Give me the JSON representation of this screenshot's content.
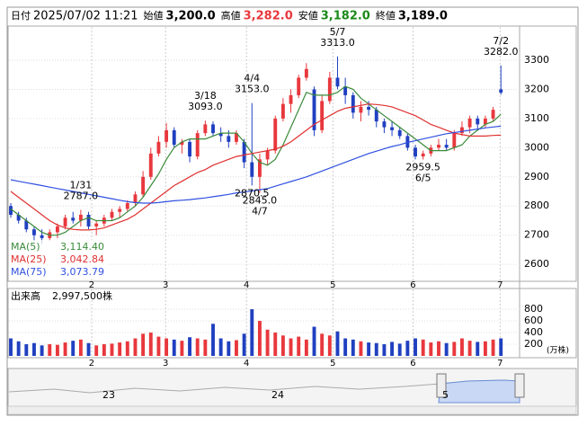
{
  "chart_data": {
    "type": "candlestick",
    "header": [
      {
        "label": "日付",
        "text": "2025/07/02 11:21",
        "color": "#000000"
      },
      {
        "label": "始値",
        "text": "3,200.0",
        "color": "#000000"
      },
      {
        "label": "高値",
        "text": "3,282.0",
        "color": "#e8383d"
      },
      {
        "label": "安値",
        "text": "3,182.0",
        "color": "#1a8a1a"
      },
      {
        "label": "終値",
        "text": "3,189.0",
        "color": "#000000"
      }
    ],
    "up_color": "#e8383d",
    "down_color": "#2040c0",
    "xlim": [
      -0.23,
      65.4
    ],
    "xticks": [
      {
        "value": 10.4,
        "label": "2"
      },
      {
        "value": 19.9,
        "label": "3"
      },
      {
        "value": 30.3,
        "label": "4"
      },
      {
        "value": 41.4,
        "label": "5"
      },
      {
        "value": 51.7,
        "label": "6"
      },
      {
        "value": 62.9,
        "label": "7"
      }
    ],
    "ylim": [
      2545,
      3414
    ],
    "yticks": [
      2600,
      2700,
      2800,
      2900,
      3000,
      3100,
      3200,
      3300
    ],
    "candles": [
      [
        2800,
        2810,
        2760,
        2770
      ],
      [
        2770,
        2780,
        2740,
        2750
      ],
      [
        2750,
        2760,
        2710,
        2720
      ],
      [
        2720,
        2730,
        2680,
        2700
      ],
      [
        2700,
        2720,
        2670,
        2690
      ],
      [
        2690,
        2720,
        2680,
        2710
      ],
      [
        2710,
        2740,
        2690,
        2730
      ],
      [
        2730,
        2770,
        2720,
        2760
      ],
      [
        2760,
        2780,
        2740,
        2750
      ],
      [
        2750,
        2787,
        2730,
        2770
      ],
      [
        2770,
        2780,
        2720,
        2730
      ],
      [
        2730,
        2750,
        2700,
        2740
      ],
      [
        2740,
        2770,
        2730,
        2760
      ],
      [
        2760,
        2790,
        2750,
        2780
      ],
      [
        2780,
        2800,
        2760,
        2790
      ],
      [
        2790,
        2820,
        2780,
        2810
      ],
      [
        2810,
        2850,
        2800,
        2840
      ],
      [
        2840,
        2920,
        2830,
        2900
      ],
      [
        2900,
        3000,
        2890,
        2980
      ],
      [
        2980,
        3040,
        2970,
        3020
      ],
      [
        3020,
        3085,
        3000,
        3060
      ],
      [
        3060,
        3070,
        3000,
        3010
      ],
      [
        3010,
        3030,
        2980,
        3020
      ],
      [
        3020,
        3030,
        2950,
        2970
      ],
      [
        2970,
        3060,
        2960,
        3050
      ],
      [
        3050,
        3093,
        3040,
        3080
      ],
      [
        3080,
        3090,
        3040,
        3050
      ],
      [
        3050,
        3070,
        3020,
        3040
      ],
      [
        3040,
        3060,
        3000,
        3020
      ],
      [
        3020,
        3060,
        3010,
        3050
      ],
      [
        3020,
        3030,
        2930,
        2950
      ],
      [
        2950,
        3153,
        2870.5,
        2900
      ],
      [
        2900,
        2980,
        2845,
        2960
      ],
      [
        2960,
        3000,
        2940,
        2990
      ],
      [
        2990,
        3110,
        2980,
        3100
      ],
      [
        3100,
        3170,
        3090,
        3150
      ],
      [
        3150,
        3200,
        3120,
        3180
      ],
      [
        3180,
        3250,
        3170,
        3240
      ],
      [
        3240,
        3290,
        3230,
        3270
      ],
      [
        3200,
        3210,
        3040,
        3060
      ],
      [
        3060,
        3180,
        3050,
        3160
      ],
      [
        3160,
        3260,
        3150,
        3240
      ],
      [
        3240,
        3313,
        3200,
        3210
      ],
      [
        3210,
        3240,
        3150,
        3180
      ],
      [
        3180,
        3190,
        3100,
        3120
      ],
      [
        3120,
        3160,
        3090,
        3140
      ],
      [
        3140,
        3160,
        3110,
        3130
      ],
      [
        3130,
        3140,
        3070,
        3090
      ],
      [
        3090,
        3100,
        3050,
        3070
      ],
      [
        3070,
        3090,
        3040,
        3060
      ],
      [
        3060,
        3070,
        3030,
        3040
      ],
      [
        3040,
        3050,
        2990,
        3000
      ],
      [
        3000,
        3010,
        2960,
        2970
      ],
      [
        2970,
        2990,
        2959.5,
        2980
      ],
      [
        2980,
        3010,
        2970,
        3000
      ],
      [
        3000,
        3030,
        2990,
        3010
      ],
      [
        3010,
        3030,
        2990,
        3000
      ],
      [
        3000,
        3060,
        2990,
        3050
      ],
      [
        3050,
        3090,
        3040,
        3070
      ],
      [
        3070,
        3110,
        3050,
        3100
      ],
      [
        3100,
        3110,
        3060,
        3080
      ],
      [
        3080,
        3110,
        3070,
        3100
      ],
      [
        3100,
        3140,
        3090,
        3130
      ],
      [
        3200,
        3282,
        3182,
        3189
      ]
    ],
    "series": [
      {
        "name": "MA(5)",
        "color": "#3a8a3a",
        "current_label": "3,114.40",
        "values": [
          2790,
          2770,
          2750,
          2730,
          2710,
          2700,
          2700,
          2710,
          2730,
          2750,
          2760,
          2750,
          2750,
          2750,
          2760,
          2780,
          2800,
          2830,
          2870,
          2910,
          2960,
          3000,
          3020,
          3030,
          3030,
          3030,
          3040,
          3050,
          3050,
          3050,
          3020,
          2980,
          2950,
          2940,
          2960,
          3010,
          3070,
          3130,
          3190,
          3180,
          3180,
          3180,
          3190,
          3210,
          3200,
          3170,
          3150,
          3130,
          3110,
          3090,
          3070,
          3050,
          3030,
          3010,
          2990,
          2990,
          2990,
          3000,
          3010,
          3040,
          3060,
          3080,
          3090,
          3114.4
        ]
      },
      {
        "name": "MA(25)",
        "color": "#e03030",
        "current_label": "3,042.84",
        "values": [
          2850,
          2830,
          2810,
          2790,
          2770,
          2750,
          2735,
          2725,
          2720,
          2718,
          2718,
          2720,
          2725,
          2735,
          2745,
          2755,
          2770,
          2790,
          2810,
          2830,
          2850,
          2870,
          2885,
          2900,
          2915,
          2925,
          2940,
          2950,
          2960,
          2970,
          2975,
          2980,
          2985,
          2990,
          2995,
          3005,
          3020,
          3040,
          3060,
          3080,
          3095,
          3110,
          3125,
          3135,
          3140,
          3145,
          3150,
          3148,
          3145,
          3140,
          3130,
          3120,
          3110,
          3095,
          3080,
          3070,
          3060,
          3050,
          3045,
          3040,
          3040,
          3040,
          3042,
          3042.84
        ]
      },
      {
        "name": "MA(75)",
        "color": "#3050e0",
        "current_label": "3,073.79",
        "values": [
          2890,
          2885,
          2880,
          2875,
          2870,
          2865,
          2860,
          2855,
          2850,
          2845,
          2840,
          2835,
          2830,
          2825,
          2820,
          2815,
          2812,
          2810,
          2810,
          2812,
          2815,
          2818,
          2820,
          2822,
          2825,
          2828,
          2832,
          2836,
          2840,
          2845,
          2848,
          2852,
          2856,
          2860,
          2868,
          2876,
          2884,
          2892,
          2900,
          2910,
          2920,
          2930,
          2940,
          2950,
          2960,
          2970,
          2980,
          2988,
          2996,
          3004,
          3010,
          3018,
          3024,
          3030,
          3036,
          3042,
          3048,
          3052,
          3056,
          3060,
          3064,
          3068,
          3071,
          3073.79
        ]
      }
    ],
    "annotations": [
      {
        "candle": 9,
        "part": 1,
        "date": "1/31",
        "price": "2787.0"
      },
      {
        "candle": 25,
        "part": 1,
        "date": "3/18",
        "price": "3093.0"
      },
      {
        "candle": 31,
        "part": 1,
        "date": "4/4",
        "price": "3153.0"
      },
      {
        "candle": 42,
        "part": 1,
        "date": "5/7",
        "price": "3313.0"
      },
      {
        "candle": 63,
        "part": 1,
        "date": "7/2",
        "price": "3282.0"
      },
      {
        "candle": 31,
        "part": 2,
        "price": "2870.5"
      },
      {
        "candle": 32,
        "part": 2,
        "date": "4/7",
        "price": "2845.0"
      },
      {
        "candle": 53,
        "part": 2,
        "date": "6/5",
        "price": "2959.5"
      }
    ],
    "volume": {
      "title": "出来高",
      "text": "2,997,500株",
      "unit": "(万株)",
      "ylim": [
        0,
        1140
      ],
      "yticks": [
        200,
        400,
        600,
        800
      ],
      "values": [
        300,
        250,
        200,
        220,
        180,
        200,
        190,
        230,
        260,
        280,
        220,
        180,
        200,
        210,
        230,
        250,
        300,
        380,
        400,
        330,
        300,
        280,
        260,
        320,
        300,
        280,
        550,
        300,
        250,
        270,
        380,
        800,
        600,
        450,
        400,
        350,
        300,
        330,
        280,
        500,
        380,
        350,
        420,
        300,
        280,
        250,
        230,
        220,
        200,
        240,
        210,
        260,
        300,
        280,
        230,
        250,
        220,
        240,
        300,
        260,
        240,
        250,
        280,
        300
      ]
    },
    "navigator": {
      "labels": [
        "23",
        "24",
        "5"
      ]
    }
  }
}
